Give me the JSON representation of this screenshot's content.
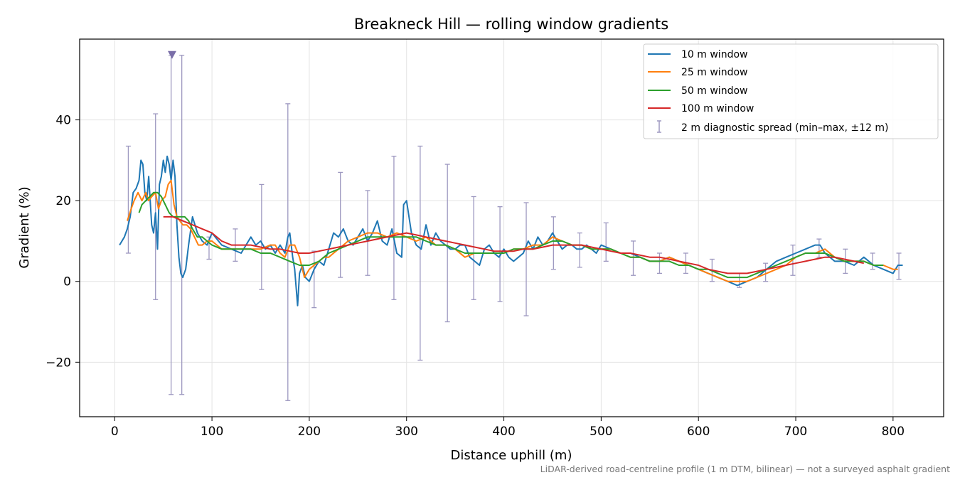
{
  "chart_data": {
    "type": "line",
    "title": "Breakneck Hill — rolling window gradients",
    "xlabel": "Distance uphill (m)",
    "ylabel": "Gradient (%)",
    "xlim": [
      -36,
      852
    ],
    "ylim": [
      -33.5,
      60
    ],
    "xticks": [
      0,
      100,
      200,
      300,
      400,
      500,
      600,
      700,
      800
    ],
    "yticks": [
      -20,
      0,
      20,
      40
    ],
    "ytick_labels": [
      "−20",
      "0",
      "20",
      "40"
    ],
    "grid": true,
    "legend_position": "top-right",
    "footnote": "LiDAR-derived road-centreline profile (1 m DTM, bilinear) — not a surveyed asphalt gradient",
    "series": [
      {
        "name": "10 m window",
        "color": "#1f77b4",
        "x": [
          5,
          10,
          13,
          16,
          19,
          22,
          25,
          27,
          29,
          31,
          33,
          35,
          38,
          40,
          42,
          44,
          46,
          48,
          50,
          52,
          54,
          56,
          58,
          60,
          62,
          64,
          66,
          68,
          70,
          73,
          76,
          80,
          85,
          90,
          95,
          100,
          110,
          120,
          130,
          135,
          140,
          145,
          150,
          155,
          160,
          165,
          170,
          175,
          178,
          180,
          183,
          185,
          188,
          190,
          193,
          196,
          200,
          205,
          210,
          215,
          220,
          225,
          230,
          235,
          240,
          245,
          250,
          255,
          260,
          265,
          270,
          275,
          280,
          285,
          290,
          295,
          297,
          300,
          305,
          310,
          315,
          320,
          325,
          330,
          335,
          340,
          345,
          350,
          355,
          360,
          365,
          370,
          375,
          380,
          385,
          390,
          395,
          400,
          405,
          410,
          415,
          420,
          425,
          430,
          435,
          440,
          445,
          450,
          455,
          460,
          465,
          470,
          475,
          480,
          485,
          490,
          495,
          500,
          510,
          520,
          530,
          540,
          550,
          560,
          570,
          580,
          590,
          600,
          610,
          620,
          630,
          640,
          650,
          660,
          670,
          680,
          690,
          700,
          710,
          720,
          725,
          730,
          740,
          750,
          760,
          770,
          780,
          790,
          800,
          805,
          810
        ],
        "y": [
          9,
          11,
          13,
          16,
          22,
          23,
          25,
          30,
          29,
          22,
          20,
          26,
          14,
          12,
          17,
          8,
          24,
          26,
          30,
          27,
          31,
          29,
          25,
          30,
          26,
          14,
          6,
          2,
          1,
          3,
          9,
          16,
          12,
          10,
          9,
          12,
          9,
          8,
          7,
          9,
          11,
          9,
          10,
          8,
          9,
          7,
          9,
          7,
          11,
          12,
          6,
          3,
          -6,
          2,
          4,
          1,
          0,
          3,
          5,
          4,
          8,
          12,
          11,
          13,
          10,
          9,
          11,
          13,
          10,
          12,
          15,
          10,
          9,
          13,
          7,
          6,
          19,
          20,
          12,
          9,
          8,
          14,
          9,
          12,
          10,
          9,
          8,
          8,
          9,
          9,
          6,
          5,
          4,
          8,
          9,
          7,
          6,
          8,
          6,
          5,
          6,
          7,
          10,
          8,
          11,
          9,
          10,
          12,
          10,
          8,
          9,
          9,
          8,
          8,
          9,
          8,
          7,
          9,
          8,
          7,
          7,
          6,
          5,
          5,
          6,
          5,
          4,
          3,
          2,
          1,
          0,
          -1,
          0,
          1,
          3,
          5,
          6,
          7,
          8,
          9,
          9,
          7,
          5,
          5,
          4,
          6,
          4,
          3,
          2,
          4,
          4
        ]
      },
      {
        "name": "25 m window",
        "color": "#ff7f0e",
        "x": [
          13,
          17,
          20,
          24,
          28,
          32,
          35,
          38,
          42,
          45,
          48,
          52,
          55,
          58,
          61,
          64,
          67,
          70,
          74,
          78,
          82,
          86,
          90,
          95,
          100,
          110,
          120,
          130,
          140,
          150,
          160,
          165,
          170,
          175,
          180,
          185,
          190,
          195,
          200,
          205,
          210,
          215,
          220,
          225,
          230,
          240,
          250,
          260,
          270,
          280,
          290,
          300,
          310,
          320,
          330,
          340,
          350,
          360,
          370,
          380,
          390,
          400,
          410,
          420,
          430,
          440,
          450,
          460,
          470,
          480,
          490,
          500,
          510,
          520,
          530,
          540,
          550,
          560,
          570,
          580,
          590,
          600,
          610,
          620,
          630,
          640,
          650,
          660,
          670,
          680,
          690,
          700,
          710,
          720,
          730,
          740,
          750,
          760,
          770,
          780,
          790,
          800,
          805
        ],
        "y": [
          15,
          18,
          20,
          22,
          20,
          22,
          20,
          21,
          22,
          18,
          20,
          21,
          24,
          25,
          19,
          16,
          15,
          14,
          14,
          13,
          11,
          9,
          9,
          10,
          10,
          8,
          8,
          8,
          8,
          8,
          9,
          9,
          7,
          6,
          9,
          9,
          6,
          1,
          3,
          4,
          5,
          6,
          6,
          7,
          8,
          10,
          11,
          12,
          12,
          11,
          12,
          11,
          10,
          11,
          9,
          9,
          8,
          6,
          7,
          7,
          7,
          7,
          8,
          8,
          9,
          9,
          11,
          10,
          9,
          9,
          8,
          8,
          8,
          7,
          6,
          6,
          5,
          5,
          6,
          5,
          4,
          3,
          2,
          1,
          0,
          0,
          0,
          1,
          2,
          3,
          4,
          6,
          7,
          7,
          8,
          6,
          5,
          5,
          5,
          4,
          4,
          3,
          3
        ]
      },
      {
        "name": "50 m window",
        "color": "#2ca02c",
        "x": [
          25,
          28,
          32,
          36,
          40,
          44,
          48,
          52,
          56,
          60,
          64,
          68,
          72,
          76,
          80,
          85,
          90,
          95,
          100,
          110,
          120,
          130,
          140,
          150,
          160,
          170,
          180,
          190,
          200,
          210,
          220,
          230,
          240,
          250,
          260,
          270,
          280,
          290,
          300,
          310,
          320,
          330,
          340,
          350,
          360,
          370,
          380,
          390,
          400,
          410,
          420,
          430,
          440,
          450,
          460,
          470,
          480,
          490,
          500,
          510,
          520,
          530,
          540,
          550,
          560,
          570,
          580,
          590,
          600,
          610,
          620,
          630,
          640,
          650,
          660,
          670,
          680,
          690,
          700,
          710,
          720,
          730,
          740,
          750,
          760,
          770,
          780,
          790
        ],
        "y": [
          17,
          19,
          20,
          21,
          22,
          22,
          21,
          19,
          17,
          16,
          16,
          16,
          16,
          15,
          13,
          11,
          11,
          10,
          9,
          8,
          8,
          8,
          8,
          7,
          7,
          6,
          5,
          4,
          4,
          5,
          7,
          8,
          9,
          10,
          11,
          11,
          11,
          11,
          11,
          11,
          10,
          9,
          9,
          8,
          7,
          7,
          7,
          7,
          7,
          8,
          8,
          8,
          9,
          10,
          10,
          9,
          9,
          8,
          8,
          8,
          7,
          6,
          6,
          5,
          5,
          5,
          4,
          4,
          3,
          3,
          2,
          1,
          1,
          1,
          2,
          3,
          4,
          5,
          6,
          7,
          7,
          7,
          6,
          5,
          5,
          5,
          4,
          4
        ]
      },
      {
        "name": "100 m window",
        "color": "#d62728",
        "x": [
          50,
          60,
          70,
          80,
          90,
          100,
          110,
          120,
          130,
          140,
          150,
          160,
          170,
          180,
          190,
          200,
          210,
          220,
          230,
          240,
          250,
          260,
          270,
          280,
          290,
          300,
          310,
          320,
          330,
          340,
          350,
          360,
          370,
          380,
          390,
          400,
          410,
          420,
          430,
          440,
          450,
          460,
          470,
          480,
          490,
          500,
          510,
          520,
          530,
          540,
          550,
          560,
          570,
          580,
          590,
          600,
          610,
          620,
          630,
          640,
          650,
          660,
          670,
          680,
          690,
          700,
          710,
          720,
          730,
          740,
          750,
          760,
          770
        ],
        "y": [
          16,
          16,
          15,
          14,
          13,
          12,
          10,
          9,
          9,
          9,
          8.5,
          8,
          8,
          7.5,
          7,
          7,
          7.5,
          8,
          8.5,
          9,
          9.5,
          10,
          10.5,
          11,
          11.5,
          12,
          11.5,
          11,
          10.5,
          10,
          9.5,
          9,
          8.5,
          8,
          7.5,
          7.5,
          7.5,
          8,
          8,
          8.5,
          9,
          9,
          9,
          9,
          8.5,
          8,
          7.5,
          7,
          7,
          6.5,
          6,
          6,
          5.5,
          5,
          4.5,
          4,
          3,
          2.5,
          2,
          2,
          2,
          2.5,
          3,
          3.5,
          4,
          4.5,
          5,
          5.5,
          6,
          6,
          5.5,
          5,
          4.5
        ]
      }
    ],
    "errorbars": {
      "name": "2 m diagnostic spread (min–max, ±12 m)",
      "color": "#9d98c0",
      "x": [
        14,
        42,
        58,
        69,
        97,
        124,
        151,
        178,
        205,
        232,
        260,
        287,
        314,
        342,
        369,
        396,
        423,
        451,
        478,
        505,
        533,
        560,
        587,
        614,
        642,
        669,
        697,
        724,
        751,
        779,
        806
      ],
      "low": [
        7,
        -4.5,
        -28,
        -28,
        5.5,
        5,
        -2,
        -29.5,
        -6.5,
        1,
        1.5,
        -4.5,
        -19.5,
        -10,
        -4.5,
        -5,
        -8.5,
        3,
        3.5,
        5,
        1.5,
        2,
        2,
        0,
        -1.5,
        0,
        1.5,
        6,
        2,
        3,
        0.5
      ],
      "high": [
        33.5,
        41.5,
        56,
        56,
        11,
        13,
        24,
        44,
        7.5,
        27,
        22.5,
        31,
        33.5,
        29,
        21,
        18.5,
        19.5,
        16,
        12,
        14.5,
        10,
        7,
        7,
        5.5,
        2,
        4.5,
        9,
        10.5,
        8,
        7,
        7
      ],
      "marker": {
        "x": 59,
        "y": 56
      }
    }
  }
}
